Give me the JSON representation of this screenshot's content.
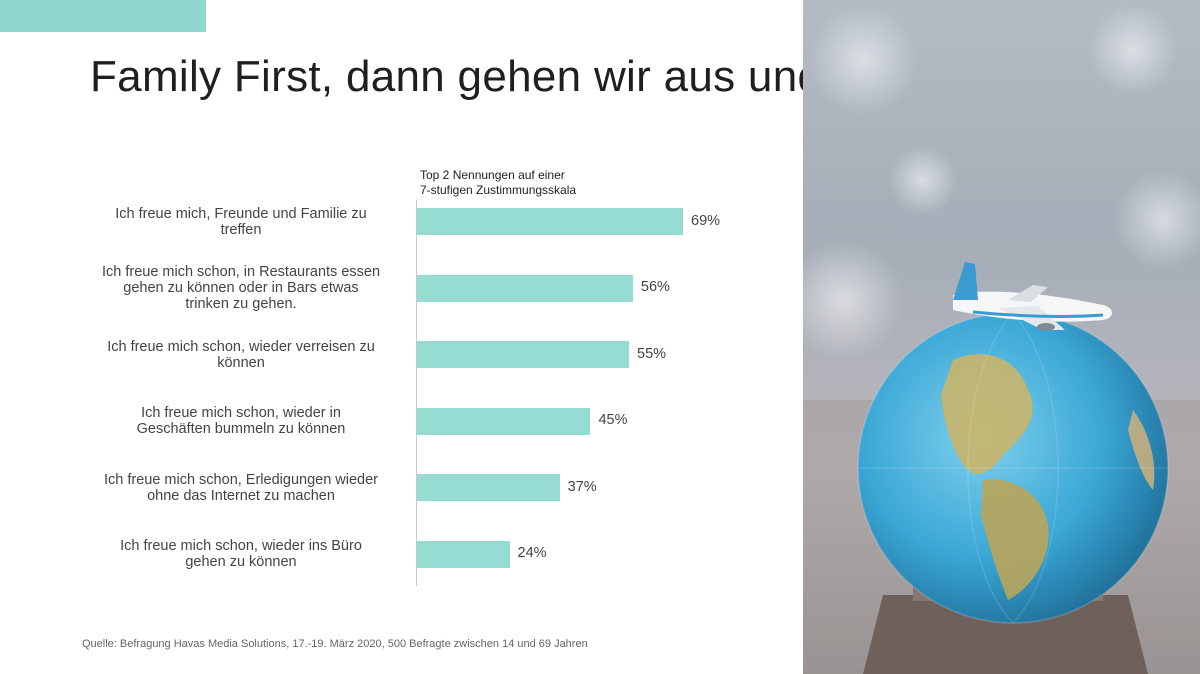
{
  "slide": {
    "title": "Family First, dann gehen wir aus und verreisen",
    "source": "Quelle: Befragung Havas Media Solutions, 17.-19. März 2020, 500 Befragte zwischen 14 und 69 Jahren",
    "accent_color": "#8fd8cf"
  },
  "chart_data": {
    "type": "bar",
    "orientation": "horizontal",
    "note": [
      "Top 2 Nennungen auf einer",
      "7-stufigen Zustimmungsskala"
    ],
    "categories": [
      [
        "Ich freue mich, Freunde und Familie zu",
        "treffen"
      ],
      [
        "Ich freue mich schon, in Restaurants essen",
        "gehen zu können oder in Bars etwas",
        "trinken zu gehen."
      ],
      [
        "Ich freue mich schon, wieder verreisen zu",
        "können"
      ],
      [
        "Ich freue mich schon, wieder in",
        "Geschäften bummeln zu können"
      ],
      [
        "Ich freue mich schon, Erledigungen wieder",
        "ohne das Internet zu machen"
      ],
      [
        "Ich freue mich schon, wieder ins Büro",
        "gehen zu können"
      ]
    ],
    "values": [
      69,
      56,
      55,
      45,
      37,
      24
    ],
    "value_labels": [
      "69%",
      "56%",
      "55%",
      "45%",
      "37%",
      "24%"
    ],
    "unit": "%",
    "xlim": [
      0,
      100
    ],
    "bar_color": "#96dcd3",
    "grid": false
  },
  "photo": {
    "icons": [
      "globe-icon",
      "airplane-icon"
    ]
  }
}
